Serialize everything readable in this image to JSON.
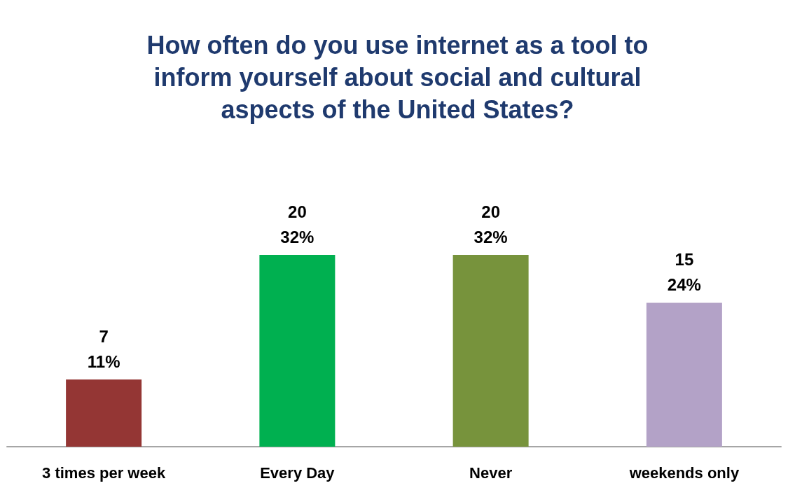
{
  "chart_data": {
    "type": "bar",
    "title": "How often do you use internet as a tool to\ninform yourself about social and cultural\naspects of the United States?",
    "categories": [
      "3 times per week",
      "Every Day",
      "Never",
      "weekends only"
    ],
    "values": [
      7,
      20,
      20,
      15
    ],
    "colors": [
      "#943634",
      "#00b050",
      "#77933c",
      "#b3a2c7"
    ],
    "value_labels": [
      "7\n11%",
      "20\n32%",
      "20\n32%",
      "15\n24%"
    ]
  }
}
